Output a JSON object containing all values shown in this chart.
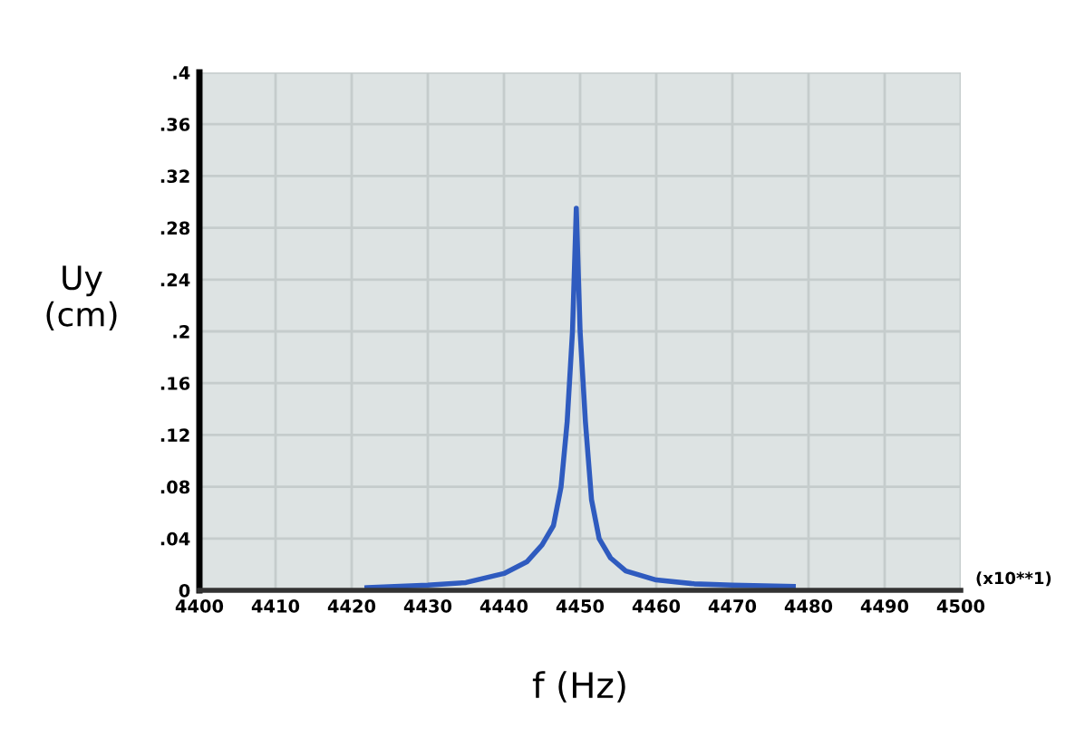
{
  "chart_data": {
    "type": "line",
    "xlabel": "f (Hz)",
    "ylabel": "Uy\n(cm)",
    "annotations": [
      "(x10**1)"
    ],
    "series": [
      {
        "color": "#2f5bbf",
        "x": [
          4422,
          4430,
          4435,
          4440,
          4443,
          4445,
          4446.5,
          4447.5,
          4448.3,
          4449,
          4449.5,
          4450,
          4450.7,
          4451.5,
          4452.5,
          4454,
          4456,
          4460,
          4465,
          4470,
          4478
        ],
        "values": [
          0.002,
          0.004,
          0.006,
          0.013,
          0.022,
          0.035,
          0.05,
          0.08,
          0.13,
          0.2,
          0.295,
          0.2,
          0.13,
          0.07,
          0.04,
          0.025,
          0.015,
          0.008,
          0.005,
          0.004,
          0.003
        ]
      }
    ],
    "xlim": [
      4400,
      4500
    ],
    "xticks": [
      4400,
      4410,
      4420,
      4430,
      4440,
      4450,
      4460,
      4470,
      4480,
      4490,
      4500
    ],
    "ylim": [
      0,
      0.4
    ],
    "yticks": [
      {
        "value": 0,
        "label": "0"
      },
      {
        "value": 0.04,
        "label": ".04"
      },
      {
        "value": 0.08,
        "label": ".08"
      },
      {
        "value": 0.12,
        "label": ".12"
      },
      {
        "value": 0.16,
        "label": ".16"
      },
      {
        "value": 0.2,
        "label": ".2"
      },
      {
        "value": 0.24,
        "label": ".24"
      },
      {
        "value": 0.28,
        "label": ".28"
      },
      {
        "value": 0.32,
        "label": ".32"
      },
      {
        "value": 0.36,
        "label": ".36"
      },
      {
        "value": 0.4,
        "label": ".4"
      }
    ],
    "grid": true,
    "line_style": "solid"
  }
}
